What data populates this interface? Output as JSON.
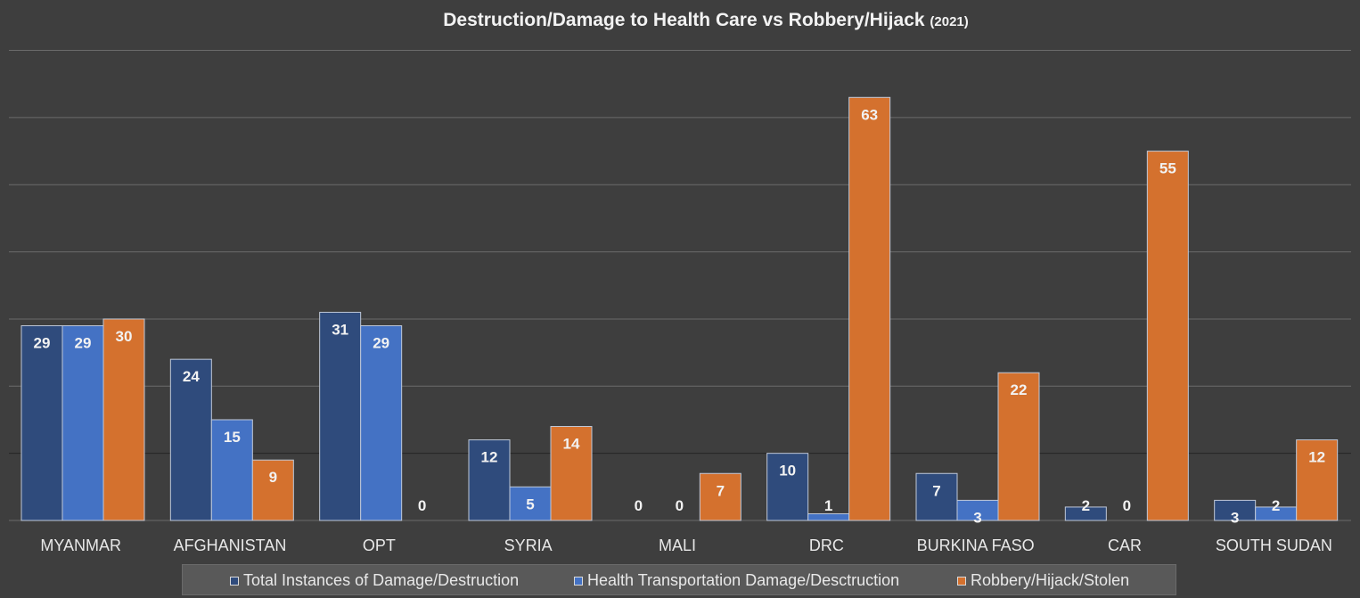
{
  "chart_data": {
    "type": "bar",
    "title": "Destruction/Damage to Health Care vs Robbery/Hijack",
    "subtitle": "(2021)",
    "categories": [
      "MYANMAR",
      "AFGHANISTAN",
      "OPT",
      "SYRIA",
      "MALI",
      "DRC",
      "BURKINA FASO",
      "CAR",
      "SOUTH SUDAN"
    ],
    "series": [
      {
        "name": "Total Instances of Damage/Destruction",
        "color": "#2f4b7c",
        "values": [
          29,
          24,
          31,
          12,
          0,
          10,
          7,
          2,
          3
        ]
      },
      {
        "name": "Health Transportation Damage/Desctruction",
        "color": "#4472c4",
        "values": [
          29,
          15,
          29,
          5,
          0,
          1,
          3,
          0,
          2
        ]
      },
      {
        "name": "Robbery/Hijack/Stolen",
        "color": "#d4712e",
        "values": [
          30,
          9,
          0,
          14,
          7,
          63,
          22,
          55,
          12
        ]
      }
    ],
    "ylim": [
      0,
      70
    ],
    "grid": true,
    "legend_position": "bottom",
    "data_labels": true
  }
}
